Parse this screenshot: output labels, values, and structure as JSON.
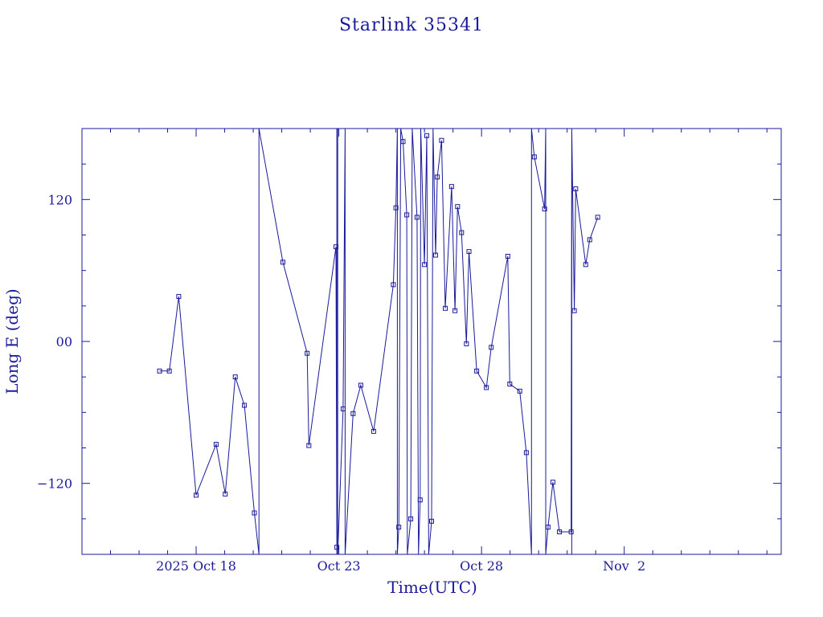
{
  "chart_data": {
    "type": "line",
    "title": "Starlink 35341",
    "xlabel": "Time(UTC)",
    "ylabel": "Long E (deg)",
    "color": "#1a1a9c",
    "background": "#ffffff",
    "grid": false,
    "legend": "none",
    "marker": "open-square",
    "x_unit": "days after 2025-10-14 00:00 UTC",
    "xlim": [
      0.0,
      24.5
    ],
    "ylim": [
      -180,
      180
    ],
    "x_tick_labels": [
      {
        "x": 4.0,
        "label": "2025 Oct 18"
      },
      {
        "x": 9.0,
        "label": "Oct 23"
      },
      {
        "x": 14.0,
        "label": "Oct 28"
      },
      {
        "x": 19.0,
        "label": "Nov  2"
      }
    ],
    "x_minor_step": 1,
    "y_ticks": [
      {
        "y": -120,
        "label": "−120"
      },
      {
        "y": 0,
        "label": "00"
      },
      {
        "y": 120,
        "label": "120"
      }
    ],
    "y_minor_step": 30,
    "points": [
      [
        2.72,
        -25
      ],
      [
        3.06,
        -25
      ],
      [
        3.39,
        38
      ],
      [
        4.0,
        -130
      ],
      [
        4.7,
        -87
      ],
      [
        5.02,
        -129
      ],
      [
        5.37,
        -30
      ],
      [
        5.69,
        -54
      ],
      [
        6.04,
        -145
      ],
      [
        6.2,
        -180
      ],
      [
        6.2,
        180
      ],
      [
        7.04,
        67
      ],
      [
        7.89,
        -10
      ],
      [
        7.95,
        -88
      ],
      [
        8.9,
        80
      ],
      [
        8.93,
        -174
      ],
      [
        8.93,
        -180
      ],
      [
        8.93,
        180
      ],
      [
        8.96,
        180
      ],
      [
        8.96,
        -180
      ],
      [
        9.15,
        -57
      ],
      [
        9.22,
        180
      ],
      [
        9.22,
        -180
      ],
      [
        9.5,
        -61
      ],
      [
        9.77,
        -37
      ],
      [
        10.22,
        -76
      ],
      [
        10.91,
        48
      ],
      [
        11.0,
        113
      ],
      [
        11.05,
        180
      ],
      [
        11.05,
        -180
      ],
      [
        11.1,
        -157
      ],
      [
        11.17,
        180
      ],
      [
        11.25,
        169
      ],
      [
        11.38,
        107
      ],
      [
        11.4,
        -180
      ],
      [
        11.52,
        -150
      ],
      [
        11.57,
        180
      ],
      [
        11.74,
        105
      ],
      [
        11.79,
        -180
      ],
      [
        11.85,
        -134
      ],
      [
        11.87,
        180
      ],
      [
        12.0,
        65
      ],
      [
        12.08,
        174
      ],
      [
        12.15,
        -180
      ],
      [
        12.25,
        -152
      ],
      [
        12.3,
        180
      ],
      [
        12.39,
        73
      ],
      [
        12.45,
        139
      ],
      [
        12.6,
        170
      ],
      [
        12.73,
        28
      ],
      [
        12.95,
        131
      ],
      [
        13.07,
        26
      ],
      [
        13.16,
        114
      ],
      [
        13.3,
        92
      ],
      [
        13.47,
        -2
      ],
      [
        13.56,
        76
      ],
      [
        13.83,
        -25
      ],
      [
        14.17,
        -39
      ],
      [
        14.34,
        -5
      ],
      [
        14.92,
        72
      ],
      [
        14.99,
        -36
      ],
      [
        15.34,
        -42
      ],
      [
        15.57,
        -94
      ],
      [
        15.75,
        -180
      ],
      [
        15.75,
        180
      ],
      [
        15.85,
        156
      ],
      [
        16.21,
        112
      ],
      [
        16.25,
        180
      ],
      [
        16.25,
        -180
      ],
      [
        16.33,
        -157
      ],
      [
        16.5,
        -119
      ],
      [
        16.73,
        -161
      ],
      [
        17.14,
        -161
      ],
      [
        17.16,
        180
      ],
      [
        17.16,
        -180
      ],
      [
        17.16,
        180
      ],
      [
        17.25,
        26
      ],
      [
        17.3,
        129
      ],
      [
        17.65,
        65
      ],
      [
        17.79,
        86
      ],
      [
        18.07,
        105
      ]
    ]
  }
}
